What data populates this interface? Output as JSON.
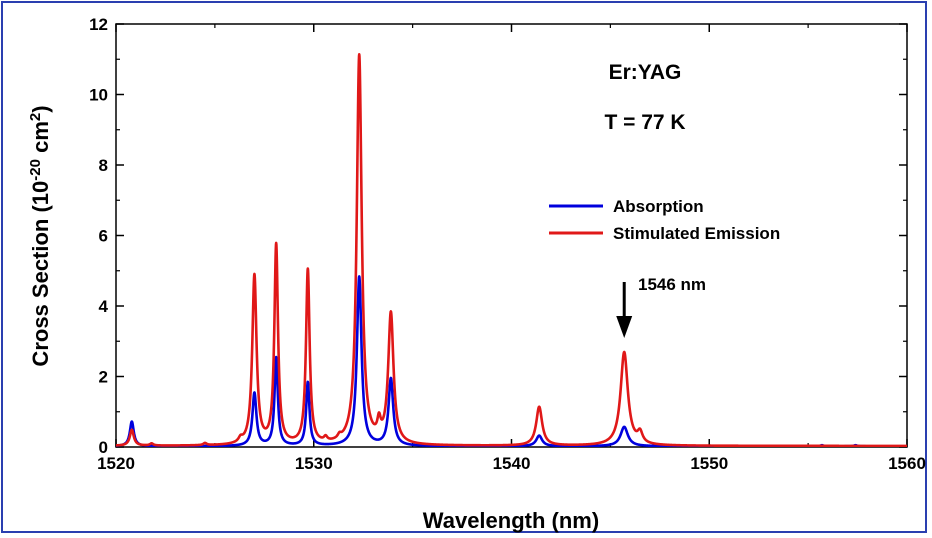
{
  "chart_data": {
    "type": "line",
    "xlabel": "Wavelength (nm)",
    "ylabel_main": "Cross Section (10",
    "ylabel_exp1": "-20",
    "ylabel_mid": " cm",
    "ylabel_exp2": "2",
    "ylabel_end": ")",
    "xlim": [
      1520,
      1560
    ],
    "ylim": [
      0,
      12
    ],
    "xticks": [
      "1520",
      "1530",
      "1540",
      "1550",
      "1560"
    ],
    "yticks": [
      "0",
      "2",
      "4",
      "6",
      "8",
      "10",
      "12"
    ],
    "annotation_material": "Er:YAG",
    "annotation_temp": "T = 77 K",
    "arrow_label": "1546 nm",
    "arrow_x": 1545.7,
    "legend_position": "center-right",
    "series": [
      {
        "name": "Absorption",
        "color": "#0000dd",
        "baseline": 0.02,
        "peaks": [
          {
            "x": 1520.8,
            "h": 0.7,
            "w": 0.12
          },
          {
            "x": 1527.0,
            "h": 1.5,
            "w": 0.12
          },
          {
            "x": 1528.1,
            "h": 2.5,
            "w": 0.1
          },
          {
            "x": 1529.7,
            "h": 1.8,
            "w": 0.1
          },
          {
            "x": 1532.3,
            "h": 4.8,
            "w": 0.14
          },
          {
            "x": 1533.9,
            "h": 1.9,
            "w": 0.14
          },
          {
            "x": 1541.4,
            "h": 0.3,
            "w": 0.18
          },
          {
            "x": 1545.7,
            "h": 0.55,
            "w": 0.22
          },
          {
            "x": 1555.7,
            "h": 0.03,
            "w": 0.1
          },
          {
            "x": 1557.4,
            "h": 0.03,
            "w": 0.1
          }
        ]
      },
      {
        "name": "Stimulated Emission",
        "color": "#e01818",
        "baseline": 0.03,
        "peaks": [
          {
            "x": 1520.8,
            "h": 0.45,
            "w": 0.12
          },
          {
            "x": 1521.8,
            "h": 0.06,
            "w": 0.1
          },
          {
            "x": 1524.5,
            "h": 0.06,
            "w": 0.1
          },
          {
            "x": 1526.3,
            "h": 0.12,
            "w": 0.12
          },
          {
            "x": 1527.0,
            "h": 4.8,
            "w": 0.13
          },
          {
            "x": 1528.1,
            "h": 5.65,
            "w": 0.11
          },
          {
            "x": 1529.7,
            "h": 4.95,
            "w": 0.11
          },
          {
            "x": 1530.6,
            "h": 0.12,
            "w": 0.1
          },
          {
            "x": 1531.3,
            "h": 0.1,
            "w": 0.1
          },
          {
            "x": 1532.3,
            "h": 11.05,
            "w": 0.15
          },
          {
            "x": 1533.3,
            "h": 0.45,
            "w": 0.1
          },
          {
            "x": 1533.9,
            "h": 3.7,
            "w": 0.16
          },
          {
            "x": 1541.4,
            "h": 1.1,
            "w": 0.18
          },
          {
            "x": 1545.7,
            "h": 2.65,
            "w": 0.22
          },
          {
            "x": 1546.5,
            "h": 0.3,
            "w": 0.15
          }
        ]
      }
    ]
  }
}
